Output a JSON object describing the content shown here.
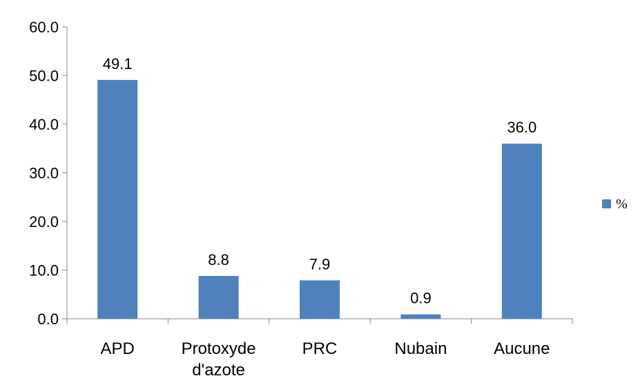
{
  "chart_data": {
    "type": "bar",
    "categories": [
      [
        "APD"
      ],
      [
        "Protoxyde",
        "d'azote"
      ],
      [
        "PRC"
      ],
      [
        "Nubain"
      ],
      [
        "Aucune"
      ]
    ],
    "series": [
      {
        "name": "%",
        "values": [
          49.1,
          8.8,
          7.9,
          0.9,
          36.0
        ],
        "data_labels": [
          "49.1",
          "8.8",
          "7.9",
          "0.9",
          "36.0"
        ],
        "color": "#4F81BD"
      }
    ],
    "title": "",
    "xlabel": "",
    "ylabel": "",
    "ylim": [
      0,
      60
    ],
    "yticks": [
      "0.0",
      "10.0",
      "20.0",
      "30.0",
      "40.0",
      "50.0",
      "60.0"
    ],
    "grid": false,
    "legend": {
      "position": "right",
      "entries": [
        "%"
      ]
    },
    "axis_color": "#868686"
  }
}
